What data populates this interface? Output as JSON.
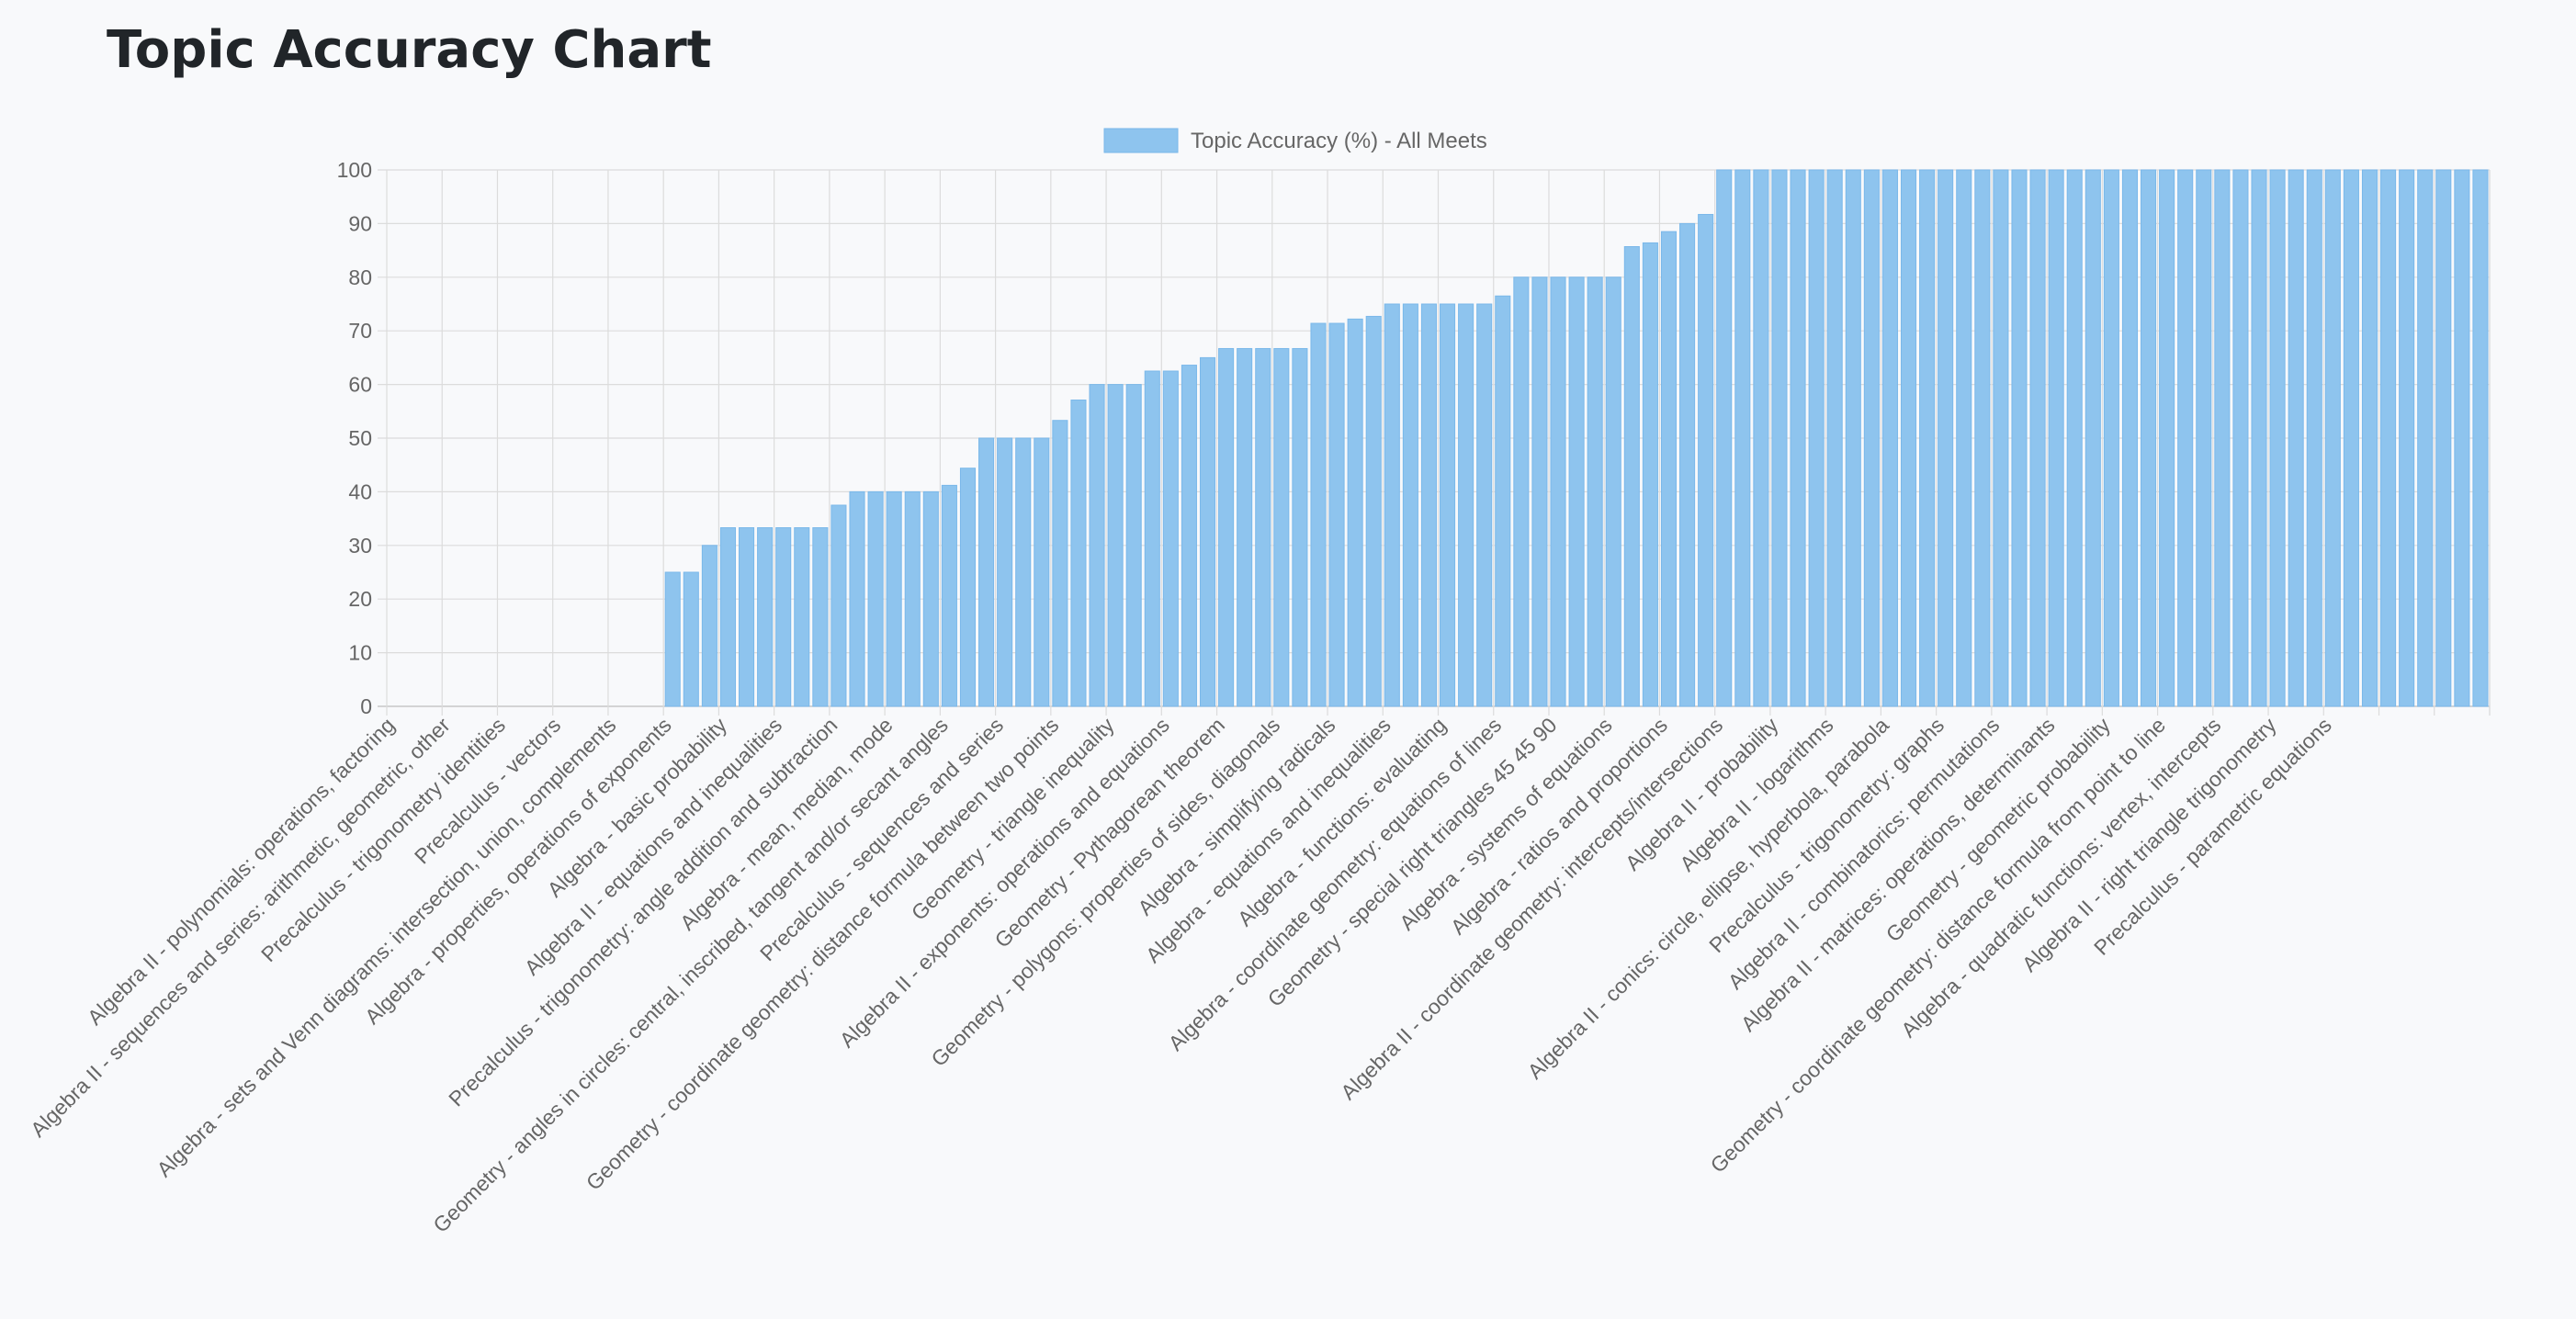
{
  "page": {
    "title": "Topic Accuracy Chart"
  },
  "chart_data": {
    "type": "bar",
    "legend": {
      "position": "top-center",
      "label": "Topic Accuracy (%) - All Meets"
    },
    "colors": {
      "bar_fill": "#8ec4ee",
      "bar_stroke": "#7ab8ea",
      "grid": "#dcdcdc",
      "text": "#666666"
    },
    "grid": true,
    "ylim": [
      0,
      100
    ],
    "yticks": [
      0,
      10,
      20,
      30,
      40,
      50,
      60,
      70,
      80,
      90,
      100
    ],
    "series": [
      {
        "name": "Topic Accuracy (%) - All Meets",
        "values": [
          0,
          0,
          0,
          0,
          0,
          0,
          0,
          0,
          0,
          0,
          0,
          0,
          0,
          0,
          0,
          25,
          25,
          30,
          33.3,
          33.3,
          33.3,
          33.3,
          33.3,
          33.3,
          37.5,
          40,
          40,
          40,
          40,
          40,
          41.2,
          44.4,
          50,
          50,
          50,
          50,
          53.3,
          57.1,
          60,
          60,
          60,
          62.5,
          62.5,
          63.6,
          65,
          66.7,
          66.7,
          66.7,
          66.7,
          66.7,
          71.4,
          71.4,
          72.2,
          72.7,
          75,
          75,
          75,
          75,
          75,
          75,
          76.5,
          80,
          80,
          80,
          80,
          80,
          80,
          85.7,
          86.4,
          88.5,
          90,
          91.7,
          100,
          100,
          100,
          100,
          100,
          100,
          100,
          100,
          100,
          100,
          100,
          100,
          100,
          100,
          100,
          100,
          100,
          100,
          100,
          100,
          100,
          100,
          100,
          100,
          100,
          100,
          100,
          100,
          100,
          100,
          100,
          100,
          100,
          100,
          100,
          100,
          100,
          100,
          100,
          100,
          100,
          100
        ]
      }
    ],
    "labeled_categories": [
      {
        "index": 0,
        "label": "Algebra II - polynomials: operations, factoring"
      },
      {
        "index": 3,
        "label": "Algebra II - sequences and series: arithmetic, geometric, other"
      },
      {
        "index": 6,
        "label": "Precalculus - trigonometry identities"
      },
      {
        "index": 9,
        "label": "Precalculus - vectors"
      },
      {
        "index": 12,
        "label": "Algebra - sets and Venn diagrams: intersection, union, complements"
      },
      {
        "index": 15,
        "label": "Algebra - properties, operations of exponents"
      },
      {
        "index": 18,
        "label": "Algebra - basic probability"
      },
      {
        "index": 21,
        "label": "Algebra II - equations and inequalities"
      },
      {
        "index": 24,
        "label": "Precalculus - trigonometry: angle addition and subtraction"
      },
      {
        "index": 27,
        "label": "Algebra - mean, median, mode"
      },
      {
        "index": 30,
        "label": "Geometry - angles in circles: central, inscribed, tangent and/or secant angles"
      },
      {
        "index": 33,
        "label": "Precalculus - sequences and series"
      },
      {
        "index": 36,
        "label": "Geometry - coordinate geometry: distance formula between two points"
      },
      {
        "index": 39,
        "label": "Geometry - triangle inequality"
      },
      {
        "index": 42,
        "label": "Algebra II - exponents: operations and equations"
      },
      {
        "index": 45,
        "label": "Geometry - Pythagorean theorem"
      },
      {
        "index": 48,
        "label": "Geometry - polygons: properties of sides, diagonals"
      },
      {
        "index": 51,
        "label": "Algebra - simplifying radicals"
      },
      {
        "index": 54,
        "label": "Algebra - equations and inequalities"
      },
      {
        "index": 57,
        "label": "Algebra - functions: evaluating"
      },
      {
        "index": 60,
        "label": "Algebra - coordinate geometry: equations of lines"
      },
      {
        "index": 63,
        "label": "Geometry - special right triangles 45 45 90"
      },
      {
        "index": 66,
        "label": "Algebra - systems of equations"
      },
      {
        "index": 69,
        "label": "Algebra - ratios and proportions"
      },
      {
        "index": 72,
        "label": "Algebra II - coordinate geometry: intercepts/intersections"
      },
      {
        "index": 75,
        "label": "Algebra II - probability"
      },
      {
        "index": 78,
        "label": "Algebra II - logarithms"
      },
      {
        "index": 81,
        "label": "Algebra II - conics: circle, ellipse, hyperbola, parabola"
      },
      {
        "index": 84,
        "label": "Precalculus - trigonometry: graphs"
      },
      {
        "index": 87,
        "label": "Algebra II - combinatorics: permutations"
      },
      {
        "index": 90,
        "label": "Algebra II - matrices: operations, determinants"
      },
      {
        "index": 93,
        "label": "Geometry - geometric probability"
      },
      {
        "index": 96,
        "label": "Geometry - coordinate geometry: distance formula from point to line"
      },
      {
        "index": 99,
        "label": "Algebra - quadratic functions: vertex, intercepts"
      },
      {
        "index": 102,
        "label": "Algebra II - right triangle trigonometry"
      },
      {
        "index": 105,
        "label": "Precalculus - parametric equations"
      }
    ]
  }
}
